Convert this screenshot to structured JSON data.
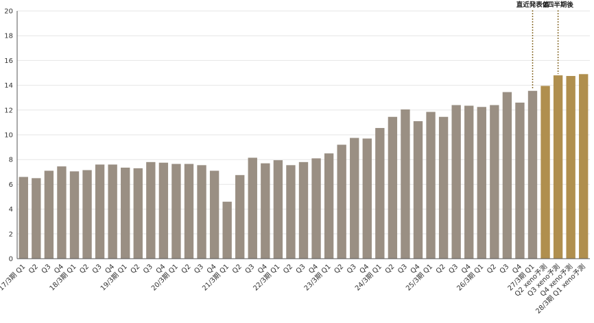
{
  "chart_data": {
    "type": "bar",
    "title": "",
    "xlabel": "",
    "ylabel": "",
    "ylim": [
      0,
      20
    ],
    "yticks": [
      0,
      2,
      4,
      6,
      8,
      10,
      12,
      14,
      16,
      18,
      20
    ],
    "grid": true,
    "legend": "none",
    "categories": [
      "17/3期 Q1",
      "Q2",
      "Q3",
      "Q4",
      "18/3期 Q1",
      "Q2",
      "Q3",
      "Q4",
      "19/3期 Q1",
      "Q2",
      "Q3",
      "Q4",
      "20/3期 Q1",
      "Q2",
      "Q3",
      "Q4",
      "21/3期 Q1",
      "Q2",
      "Q3",
      "Q4",
      "22/3期 Q1",
      "Q2",
      "Q3",
      "Q4",
      "23/3期 Q1",
      "Q2",
      "Q3",
      "Q4",
      "24/3期 Q1",
      "Q2",
      "Q3",
      "Q4",
      "25/3期 Q1",
      "Q2",
      "Q3",
      "Q4",
      "26/3期 Q1",
      "Q2",
      "Q3",
      "Q4",
      "27/3期 Q1",
      "Q2 xeno予測",
      "Q3 xeno予測",
      "Q4 xeno予測",
      "28/3期 Q1 xeno予測"
    ],
    "values": [
      6.6,
      6.5,
      7.1,
      7.45,
      7.05,
      7.15,
      7.6,
      7.6,
      7.35,
      7.3,
      7.8,
      7.75,
      7.65,
      7.65,
      7.55,
      7.1,
      4.6,
      6.75,
      8.15,
      7.7,
      7.95,
      7.55,
      7.8,
      8.1,
      8.5,
      9.2,
      9.75,
      9.7,
      10.55,
      11.45,
      12.05,
      11.1,
      11.85,
      11.45,
      12.4,
      12.35,
      12.25,
      12.4,
      13.45,
      12.6,
      13.55,
      13.95,
      14.8,
      14.75,
      14.9
    ],
    "forecast_from_index": 41,
    "colors": {
      "actual": "#9a8f83",
      "forecast": "#b08f4e",
      "marker_line": "#8a6d2e",
      "grid": "#e6e6e6",
      "axis": "#555555"
    },
    "annotations": [
      {
        "text": "直近発表値",
        "index": 40
      },
      {
        "text": "2四半期後",
        "index": 42
      }
    ]
  }
}
